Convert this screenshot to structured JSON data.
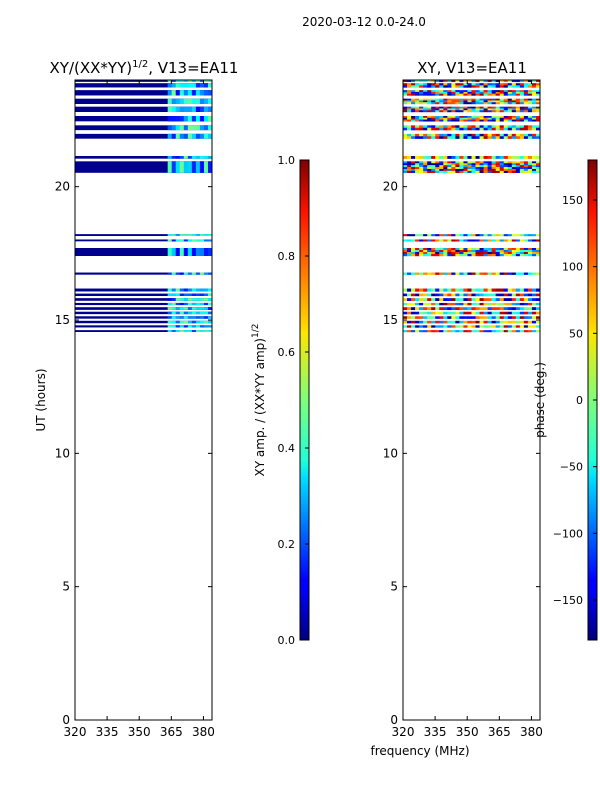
{
  "suptitle": "2020-03-12 0.0-24.0",
  "chart_data": [
    {
      "type": "heatmap",
      "title": "XY/(XX*YY)^1/2, V13=EA11",
      "title_main": "XY/(XX*YY)",
      "title_sup": "1/2",
      "title_tail": ", V13=EA11",
      "xlabel": "",
      "ylabel": "UT (hours)",
      "xlim": [
        320,
        384
      ],
      "ylim": [
        0,
        24
      ],
      "xticks": [
        320,
        335,
        350,
        365,
        380
      ],
      "yticks": [
        0,
        5,
        10,
        15,
        20
      ],
      "colormap": "jet",
      "colorbar": {
        "label": "XY amp. / (XX*YY amp)^1/2",
        "label_main": "XY amp. / (XX*YY amp)",
        "label_sup": "1/2",
        "range": [
          0.0,
          1.0
        ],
        "ticks": [
          "0.0",
          "0.2",
          "0.4",
          "0.6",
          "0.8",
          "1.0"
        ]
      },
      "data_rows_ut": [
        [
          14.55,
          14.62
        ],
        [
          14.72,
          14.8
        ],
        [
          14.88,
          14.97
        ],
        [
          15.05,
          15.14
        ],
        [
          15.22,
          15.31
        ],
        [
          15.38,
          15.48
        ],
        [
          15.56,
          15.64
        ],
        [
          15.72,
          15.82
        ],
        [
          15.9,
          15.99
        ],
        [
          16.07,
          16.18
        ],
        [
          16.7,
          16.78
        ],
        [
          17.4,
          17.7
        ],
        [
          17.95,
          18.02
        ],
        [
          18.15,
          18.22
        ],
        [
          20.52,
          20.95
        ],
        [
          21.05,
          21.15
        ],
        [
          21.8,
          21.98
        ],
        [
          22.12,
          22.3
        ],
        [
          22.45,
          22.65
        ],
        [
          22.8,
          23.0
        ],
        [
          23.1,
          23.3
        ],
        [
          23.42,
          23.62
        ],
        [
          23.72,
          23.88
        ],
        [
          23.93,
          24.0
        ]
      ],
      "feature": "near-zero amplitude (dark blue) except 362-384 MHz band at 0.2-0.5"
    },
    {
      "type": "heatmap",
      "title": "XY, V13=EA11",
      "xlabel": "frequency (MHz)",
      "ylabel": "",
      "xlim": [
        320,
        384
      ],
      "ylim": [
        0,
        24
      ],
      "xticks": [
        320,
        335,
        350,
        365,
        380
      ],
      "yticks": [
        0,
        5,
        10,
        15,
        20
      ],
      "colormap": "jet",
      "colorbar": {
        "label": "phase (deg.)",
        "range": [
          -180,
          180
        ],
        "ticks": [
          "−150",
          "−100",
          "−50",
          "0",
          "50",
          "100",
          "150"
        ]
      },
      "feature": "noisy phase in all channels where data present"
    }
  ]
}
